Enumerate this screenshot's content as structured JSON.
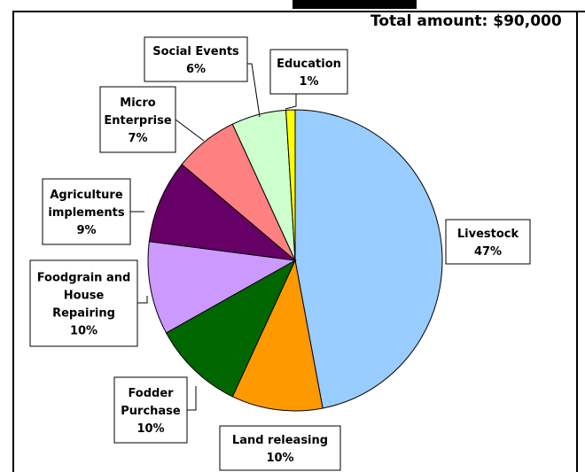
{
  "header": {
    "total_label": "Total amount: $90,000"
  },
  "chart_data": {
    "type": "pie",
    "title": "",
    "unit": "%",
    "slices": [
      {
        "name": "Livestock",
        "value": 47,
        "label": "47%",
        "color": "#99CCFF"
      },
      {
        "name": "Land releasing",
        "value": 10,
        "label": "10%",
        "color": "#FF9900"
      },
      {
        "name": "Fodder Purchase",
        "value": 10,
        "label": "10%",
        "color": "#006600"
      },
      {
        "name": "Foodgrain and House Repairing",
        "value": 10,
        "label": "10%",
        "color": "#CC99FF"
      },
      {
        "name": "Agriculture implements",
        "value": 9,
        "label": "9%",
        "color": "#660066"
      },
      {
        "name": "Micro Enterprise",
        "value": 7,
        "label": "7%",
        "color": "#FF8080"
      },
      {
        "name": "Social Events",
        "value": 6,
        "label": "6%",
        "color": "#CCFFCC"
      },
      {
        "name": "Education",
        "value": 1,
        "label": "1%",
        "color": "#FFFF00"
      }
    ]
  },
  "label_lines": [
    [
      "Livestock",
      "47%"
    ],
    [
      "Land releasing",
      "10%"
    ],
    [
      "Fodder",
      "Purchase",
      "10%"
    ],
    [
      "Foodgrain and",
      "House",
      "Repairing",
      "10%"
    ],
    [
      "Agriculture",
      "implements",
      "9%"
    ],
    [
      "Micro",
      "Enterprise",
      "7%"
    ],
    [
      "Social Events",
      "6%"
    ],
    [
      "Education",
      "1%"
    ]
  ]
}
